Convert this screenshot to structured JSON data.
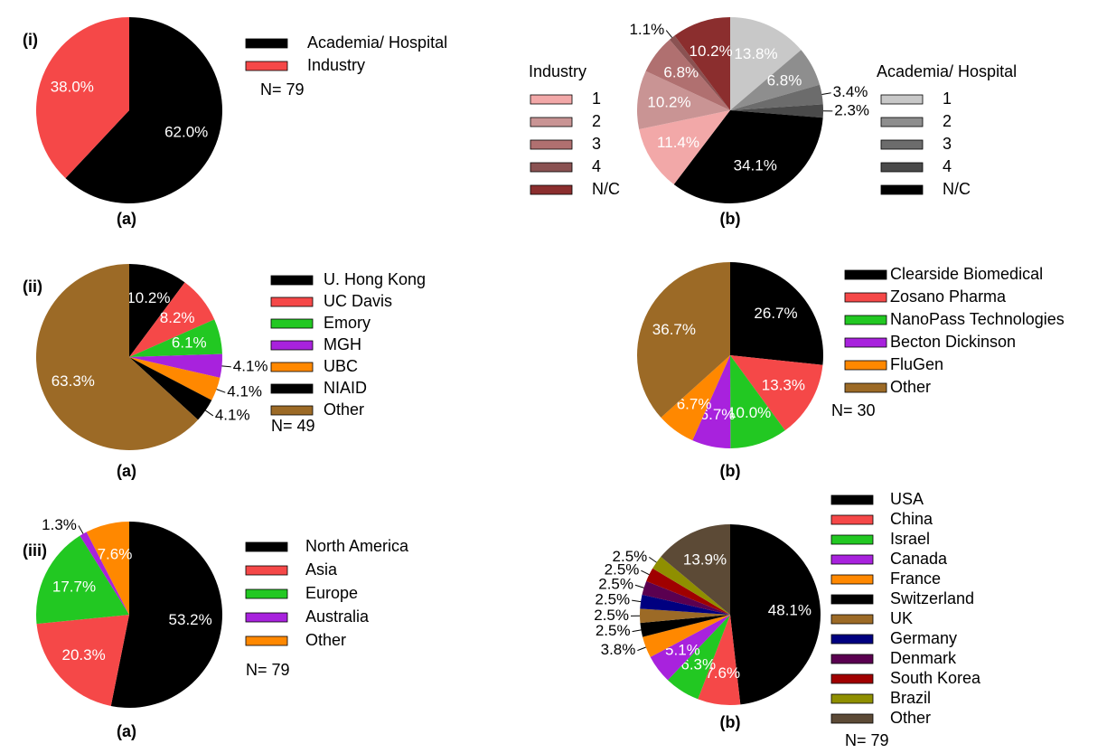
{
  "chart_data": [
    {
      "type": "pie",
      "panel": "(i)",
      "caption": "(a)",
      "n_label": "N= 79",
      "categories": [
        "Academia/ Hospital",
        "Industry"
      ],
      "values": [
        62.0,
        38.0
      ],
      "value_labels": [
        "62.0%",
        "38.0%"
      ],
      "colors": [
        "#000000",
        "#f54848"
      ]
    },
    {
      "type": "pie",
      "caption": "(b)",
      "series": [
        {
          "name": "Academia/ Hospital",
          "categories": [
            "1",
            "2",
            "3",
            "4",
            "N/C"
          ],
          "values": [
            13.8,
            6.8,
            3.4,
            2.3,
            34.1
          ],
          "value_labels": [
            "13.8%",
            "6.8%",
            "3.4%",
            "2.3%",
            "34.1%"
          ],
          "colors": [
            "#c8c8c8",
            "#8e8e8e",
            "#6c6c6c",
            "#4a4a4a",
            "#000000"
          ]
        },
        {
          "name": "Industry",
          "categories": [
            "1",
            "2",
            "3",
            "4",
            "N/C"
          ],
          "values": [
            11.4,
            10.2,
            6.8,
            1.1,
            10.2
          ],
          "value_labels": [
            "11.4%",
            "10.2%",
            "6.8%",
            "1.1%",
            "10.2%"
          ],
          "colors": [
            "#f2a8a8",
            "#c99494",
            "#b07070",
            "#8a5252",
            "#8b2e2e"
          ]
        }
      ]
    },
    {
      "type": "pie",
      "panel": "(ii)",
      "caption": "(a)",
      "n_label": "N= 49",
      "categories": [
        "U. Hong Kong",
        "UC Davis",
        "Emory",
        "MGH",
        "UBC",
        "NIAID",
        "Other"
      ],
      "values": [
        10.2,
        8.2,
        6.1,
        4.1,
        4.1,
        4.1,
        63.3
      ],
      "value_labels": [
        "10.2%",
        "8.2%",
        "6.1%",
        "4.1%",
        "4.1%",
        "4.1%",
        "63.3%"
      ],
      "colors": [
        "#000000",
        "#f54848",
        "#22c822",
        "#a822dd",
        "#ff8800",
        "#000000",
        "#9c6a26"
      ]
    },
    {
      "type": "pie",
      "caption": "(b)",
      "n_label": "N= 30",
      "categories": [
        "Clearside Biomedical",
        "Zosano Pharma",
        "NanoPass Technologies",
        "Becton Dickinson",
        "FluGen",
        "Other"
      ],
      "values": [
        26.7,
        13.3,
        10.0,
        6.7,
        6.7,
        36.7
      ],
      "value_labels": [
        "26.7%",
        "13.3%",
        "10.0%",
        "6.7%",
        "6.7%",
        "36.7%"
      ],
      "colors": [
        "#000000",
        "#f54848",
        "#22c822",
        "#a822dd",
        "#ff8800",
        "#9c6a26"
      ]
    },
    {
      "type": "pie",
      "panel": "(iii)",
      "caption": "(a)",
      "n_label": "N= 79",
      "categories": [
        "North America",
        "Asia",
        "Europe",
        "Australia",
        "Other"
      ],
      "values": [
        53.2,
        20.3,
        17.7,
        1.3,
        7.6
      ],
      "value_labels": [
        "53.2%",
        "20.3%",
        "17.7%",
        "1.3%",
        "7.6%"
      ],
      "colors": [
        "#000000",
        "#f54848",
        "#22c822",
        "#a822dd",
        "#ff8800"
      ]
    },
    {
      "type": "pie",
      "caption": "(b)",
      "n_label": "N= 79",
      "categories": [
        "USA",
        "China",
        "Israel",
        "Canada",
        "France",
        "Switzerland",
        "UK",
        "Germany",
        "Denmark",
        "South Korea",
        "Brazil",
        "Other"
      ],
      "values": [
        48.1,
        7.6,
        6.3,
        5.1,
        3.8,
        2.5,
        2.5,
        2.5,
        2.5,
        2.5,
        2.5,
        13.9
      ],
      "value_labels": [
        "48.1%",
        "7.6%",
        "6.3%",
        "5.1%",
        "3.8%",
        "2.5%",
        "2.5%",
        "2.5%",
        "2.5%",
        "2.5%",
        "2.5%",
        "13.9%"
      ],
      "colors": [
        "#000000",
        "#f54848",
        "#22c822",
        "#a822dd",
        "#ff8800",
        "#000000",
        "#9c6a26",
        "#000080",
        "#5a0050",
        "#a00000",
        "#8f8f00",
        "#5c4a36"
      ]
    }
  ]
}
